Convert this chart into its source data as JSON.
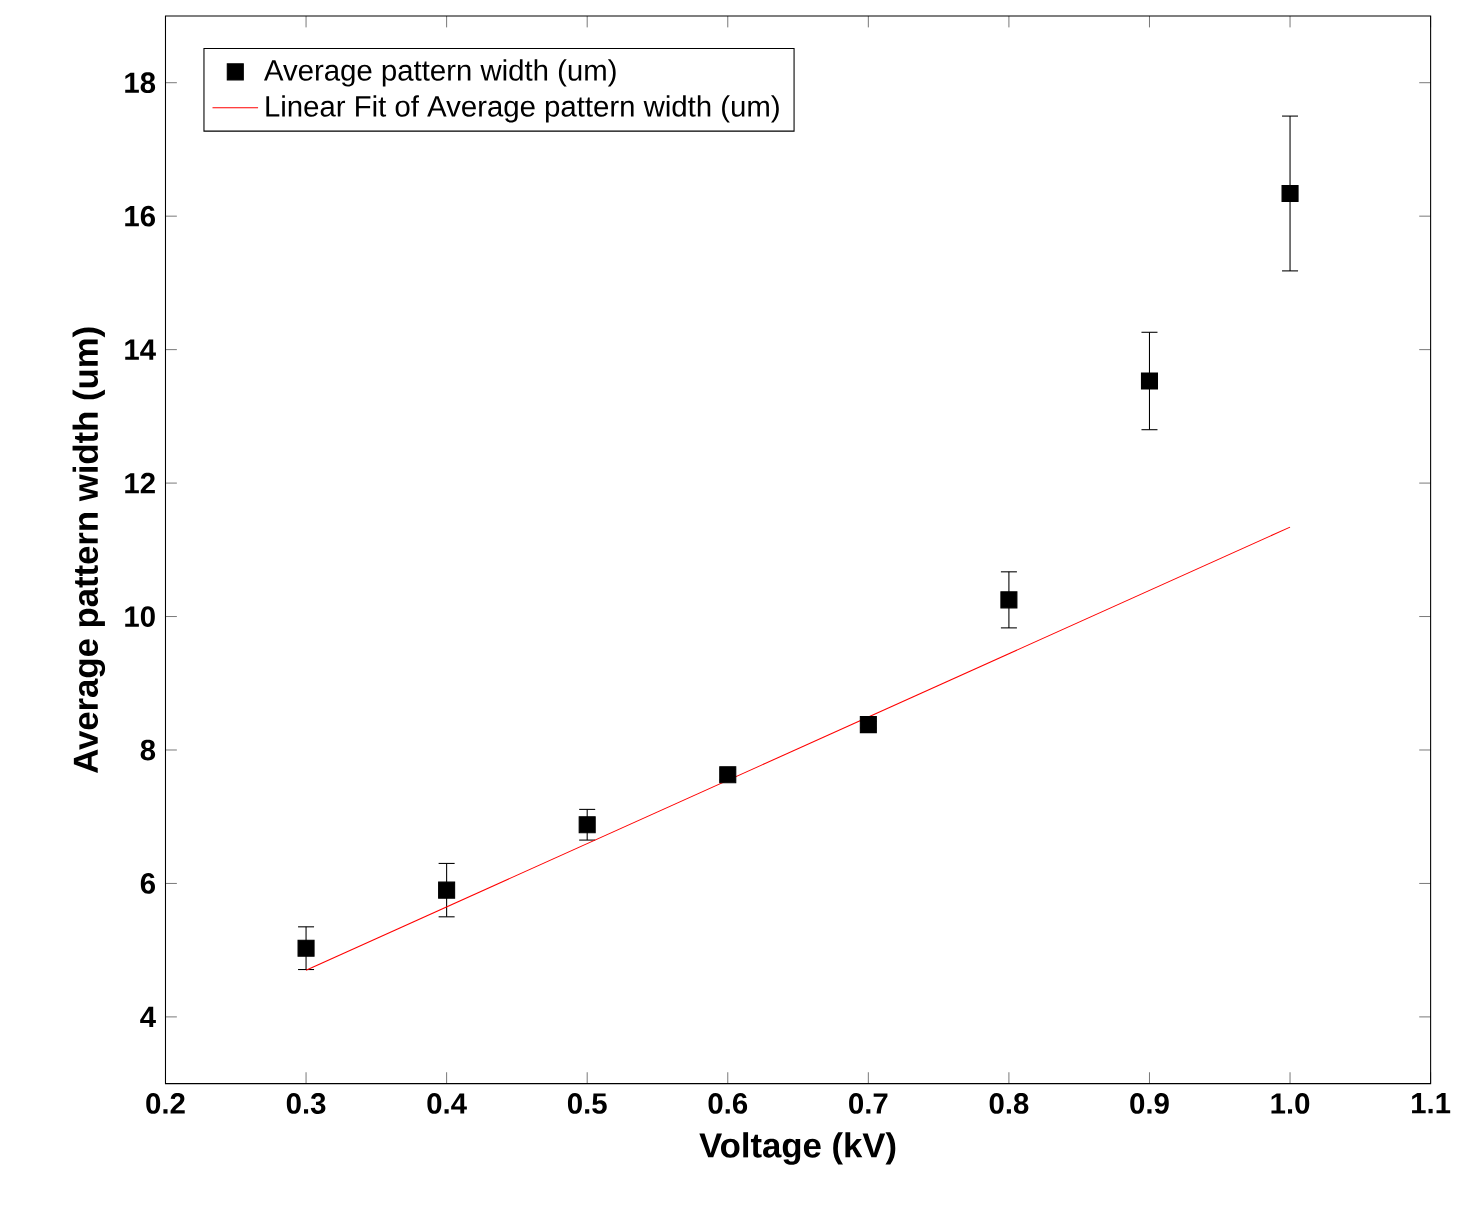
{
  "chart_data": {
    "type": "scatter",
    "xlabel": "Voltage (kV)",
    "ylabel": "Average pattern width (um)",
    "xlim": [
      0.2,
      1.1
    ],
    "ylim": [
      3,
      19
    ],
    "xticks": [
      {
        "value": 0.2,
        "label": "0.2"
      },
      {
        "value": 0.3,
        "label": "0.3"
      },
      {
        "value": 0.4,
        "label": "0.4"
      },
      {
        "value": 0.5,
        "label": "0.5"
      },
      {
        "value": 0.6,
        "label": "0.6"
      },
      {
        "value": 0.7,
        "label": "0.7"
      },
      {
        "value": 0.8,
        "label": "0.8"
      },
      {
        "value": 0.9,
        "label": "0.9"
      },
      {
        "value": 1.0,
        "label": "1.0"
      },
      {
        "value": 1.1,
        "label": "1.1"
      }
    ],
    "yticks": [
      4,
      6,
      8,
      10,
      12,
      14,
      16,
      18
    ],
    "grid": false,
    "legend": "top left",
    "series": [
      {
        "name": "Average pattern width (um)",
        "marker": "square",
        "color": "#000000",
        "x": [
          0.3,
          0.4,
          0.5,
          0.6,
          0.7,
          0.8,
          0.9,
          1.0
        ],
        "values": [
          5.03,
          5.9,
          6.88,
          7.63,
          8.38,
          10.25,
          13.53,
          16.34
        ],
        "errors": [
          0.32,
          0.4,
          0.23,
          0.08,
          0.05,
          0.42,
          0.73,
          1.16
        ]
      },
      {
        "name": "Linear Fit of Average pattern width (um)",
        "type": "line",
        "marker": "none",
        "line_style": "solid",
        "color": "#ff0000",
        "x": [
          0.3,
          1.0
        ],
        "values": [
          4.7,
          11.34
        ]
      }
    ]
  }
}
